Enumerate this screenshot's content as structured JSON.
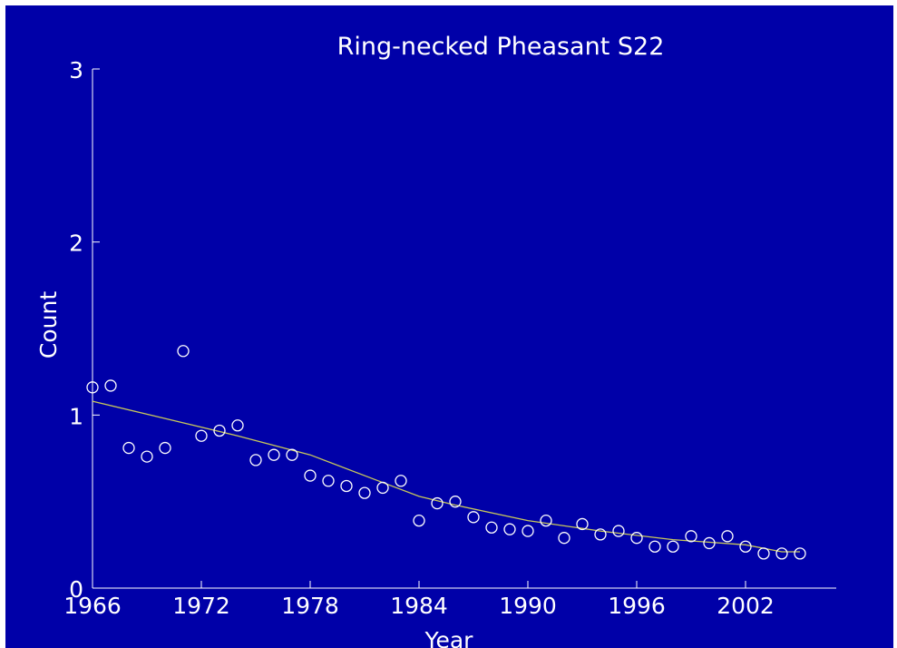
{
  "chart_data": {
    "type": "scatter",
    "title": "Ring-necked Pheasant S22",
    "xlabel": "Year",
    "ylabel": "Count",
    "xlim": [
      1966,
      2006
    ],
    "ylim": [
      0,
      3
    ],
    "xticks": [
      1966,
      1972,
      1978,
      1984,
      1990,
      1996,
      2002
    ],
    "yticks": [
      0,
      1,
      2,
      3
    ],
    "grid": false,
    "colors": {
      "background": "#0000a8",
      "axes": "#ffffff",
      "points": "#ffffff",
      "trend": "#c8c85a"
    },
    "series": [
      {
        "kind": "points",
        "x": [
          1966,
          1967,
          1968,
          1969,
          1970,
          1971,
          1972,
          1973,
          1974,
          1975,
          1976,
          1977,
          1978,
          1979,
          1980,
          1981,
          1982,
          1983,
          1984,
          1985,
          1986,
          1987,
          1988,
          1989,
          1990,
          1991,
          1992,
          1993,
          1994,
          1995,
          1996,
          1997,
          1998,
          1999,
          2000,
          2001,
          2002,
          2003,
          2004,
          2005
        ],
        "y": [
          1.16,
          1.17,
          0.81,
          0.76,
          0.81,
          1.37,
          0.88,
          0.91,
          0.94,
          0.74,
          0.77,
          0.77,
          0.65,
          0.62,
          0.59,
          0.55,
          0.58,
          0.62,
          0.39,
          0.49,
          0.5,
          0.41,
          0.35,
          0.34,
          0.33,
          0.39,
          0.29,
          0.37,
          0.31,
          0.33,
          0.29,
          0.24,
          0.24,
          0.3,
          0.26,
          0.3,
          0.24,
          0.2,
          0.2,
          0.2
        ]
      },
      {
        "kind": "trend",
        "x": [
          1966,
          1970,
          1974,
          1978,
          1982,
          1984,
          1986,
          1990,
          1994,
          1998,
          2002,
          2004,
          2005
        ],
        "y": [
          1.08,
          0.98,
          0.88,
          0.77,
          0.61,
          0.53,
          0.48,
          0.39,
          0.33,
          0.28,
          0.25,
          0.21,
          0.21
        ]
      }
    ]
  }
}
